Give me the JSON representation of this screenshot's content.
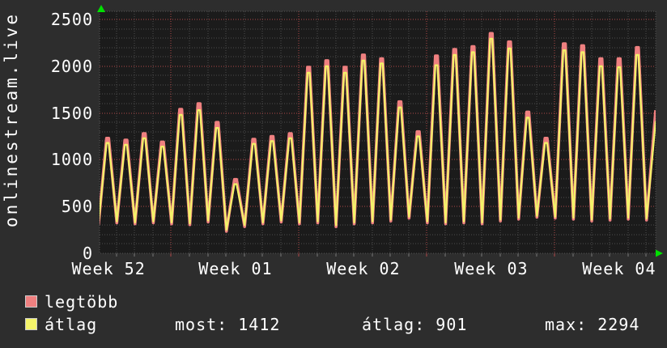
{
  "ylabel": "onlinestream.live",
  "legend": {
    "items": [
      {
        "label": "legtöbb",
        "color": "#ef8080"
      },
      {
        "label": "átlag",
        "color": "#f3f369"
      }
    ]
  },
  "stats": [
    {
      "text": "most: 1412"
    },
    {
      "text": "átlag: 901"
    },
    {
      "text": "max: 2294"
    }
  ],
  "chart_data": {
    "type": "line",
    "title": "onlinestream.live",
    "y_axis": {
      "ticks": [
        0,
        500,
        1000,
        1500,
        2000,
        2500
      ],
      "minor_step": 100,
      "lim": [
        0,
        2500
      ]
    },
    "x_axis": {
      "total_days": 30.5,
      "week_line_days": [
        4,
        11,
        18,
        25
      ],
      "labels": [
        {
          "text": "Week 52",
          "day": 0.55
        },
        {
          "text": "Week 01",
          "day": 7.5
        },
        {
          "text": "Week 02",
          "day": 14.5
        },
        {
          "text": "Week 03",
          "day": 21.5
        },
        {
          "text": "Week 04",
          "day": 28.5
        }
      ]
    },
    "colors": {
      "page_bg": "#2d2d2d",
      "plot_bg": "#1b1b1b",
      "grid_minor": "#4d4d4d",
      "grid_major": "#b04848",
      "frame": "#555555",
      "tick": "#777777",
      "arrow": "#00e000",
      "text": "#ffffff"
    },
    "series": [
      {
        "name": "legtöbb",
        "color": "#ef8080",
        "width": 3.6,
        "peaks": [
          1230,
          1210,
          1280,
          1190,
          1540,
          1600,
          1400,
          790,
          1220,
          1250,
          1280,
          1990,
          2060,
          1990,
          2120,
          2080,
          1620,
          1300,
          2110,
          2180,
          2210,
          2350,
          2260,
          1510,
          1230,
          2240,
          2220,
          2080,
          2080,
          2200
        ],
        "troughs": [
          305,
          325,
          315,
          325,
          315,
          305,
          335,
          235,
          285,
          315,
          335,
          315,
          325,
          285,
          315,
          325,
          345,
          375,
          325,
          315,
          325,
          315,
          345,
          365,
          385,
          375,
          365,
          345,
          355,
          365,
          355
        ],
        "end_value": 1530
      },
      {
        "name": "átlag",
        "color": "#f3f369",
        "width": 2.2,
        "peaks": [
          1180,
          1160,
          1230,
          1140,
          1480,
          1530,
          1340,
          740,
          1170,
          1200,
          1230,
          1930,
          2000,
          1930,
          2060,
          2030,
          1560,
          1250,
          2010,
          2120,
          2150,
          2294,
          2190,
          1450,
          1180,
          2170,
          2150,
          2000,
          1990,
          2120
        ],
        "troughs": [
          320,
          340,
          330,
          340,
          330,
          320,
          350,
          250,
          300,
          330,
          350,
          330,
          340,
          300,
          330,
          340,
          360,
          390,
          340,
          330,
          340,
          330,
          360,
          380,
          400,
          390,
          380,
          360,
          370,
          380,
          370
        ],
        "end_value": 1412
      }
    ],
    "footer_stats": {
      "most": 1412,
      "atlag": 901,
      "max": 2294
    }
  }
}
